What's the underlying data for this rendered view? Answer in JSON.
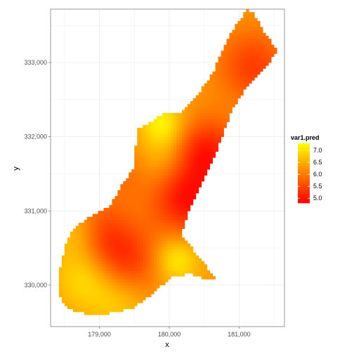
{
  "chart_data": {
    "type": "heatmap",
    "title": "",
    "xlabel": "x",
    "ylabel": "y",
    "xlim": [
      178300,
      181650
    ],
    "ylim": [
      329440,
      333720
    ],
    "x_ticks": [
      179000,
      180000,
      181000
    ],
    "x_tick_labels": [
      "179,000",
      "180,000",
      "181,000"
    ],
    "y_ticks": [
      330000,
      331000,
      332000,
      333000
    ],
    "y_tick_labels": [
      "330,000",
      "331,000",
      "332,000",
      "333,000"
    ],
    "grid": true,
    "legend": {
      "title": "var1.pred",
      "position": "right",
      "labels": [
        "7.0",
        "6.5",
        "6.0",
        "5.5",
        "5.0"
      ],
      "values": [
        7.0,
        6.5,
        6.0,
        5.5,
        5.0
      ],
      "range": [
        4.8,
        7.3
      ]
    },
    "colors": {
      "low": "#ff0000",
      "high": "#ffff00",
      "panel_border": "#7f7f7f",
      "grid": "#ebebeb"
    },
    "cell_size": 40,
    "region_outline": [
      [
        178420,
        330150
      ],
      [
        178500,
        330500
      ],
      [
        178620,
        330750
      ],
      [
        178800,
        330880
      ],
      [
        179000,
        330980
      ],
      [
        179150,
        331060
      ],
      [
        179300,
        331320
      ],
      [
        179480,
        331560
      ],
      [
        179500,
        331780
      ],
      [
        179560,
        332100
      ],
      [
        179900,
        332300
      ],
      [
        180150,
        332320
      ],
      [
        180380,
        332530
      ],
      [
        180620,
        332850
      ],
      [
        180850,
        333350
      ],
      [
        181120,
        333730
      ],
      [
        181220,
        333650
      ],
      [
        181380,
        333380
      ],
      [
        181550,
        333170
      ],
      [
        181400,
        332950
      ],
      [
        181100,
        332650
      ],
      [
        180900,
        332350
      ],
      [
        180680,
        331800
      ],
      [
        180480,
        331400
      ],
      [
        180280,
        331000
      ],
      [
        180180,
        330680
      ],
      [
        180450,
        330350
      ],
      [
        180650,
        330100
      ],
      [
        180530,
        330080
      ],
      [
        180300,
        330150
      ],
      [
        180050,
        330120
      ],
      [
        179750,
        329880
      ],
      [
        179500,
        329700
      ],
      [
        179150,
        329620
      ],
      [
        178800,
        329610
      ],
      [
        178550,
        329680
      ],
      [
        178400,
        329880
      ]
    ],
    "value_field": {
      "base": 6.3,
      "centers": [
        {
          "x": 180250,
          "y": 331150,
          "amp": -1.3,
          "r": 350
        },
        {
          "x": 180550,
          "y": 331800,
          "amp": -1.2,
          "r": 320
        },
        {
          "x": 181200,
          "y": 332950,
          "amp": -0.9,
          "r": 350
        },
        {
          "x": 179400,
          "y": 330300,
          "amp": -1.0,
          "r": 350
        },
        {
          "x": 179000,
          "y": 330700,
          "amp": -0.8,
          "r": 300
        },
        {
          "x": 179300,
          "y": 331500,
          "amp": -0.4,
          "r": 300
        },
        {
          "x": 180100,
          "y": 330350,
          "amp": 0.9,
          "r": 230
        },
        {
          "x": 179900,
          "y": 332180,
          "amp": 0.9,
          "r": 220
        },
        {
          "x": 179900,
          "y": 331700,
          "amp": 0.4,
          "r": 250
        },
        {
          "x": 178800,
          "y": 330100,
          "amp": 0.7,
          "r": 300
        },
        {
          "x": 179300,
          "y": 329800,
          "amp": 0.6,
          "r": 300
        },
        {
          "x": 178700,
          "y": 330700,
          "amp": 0.6,
          "r": 250
        }
      ]
    }
  }
}
